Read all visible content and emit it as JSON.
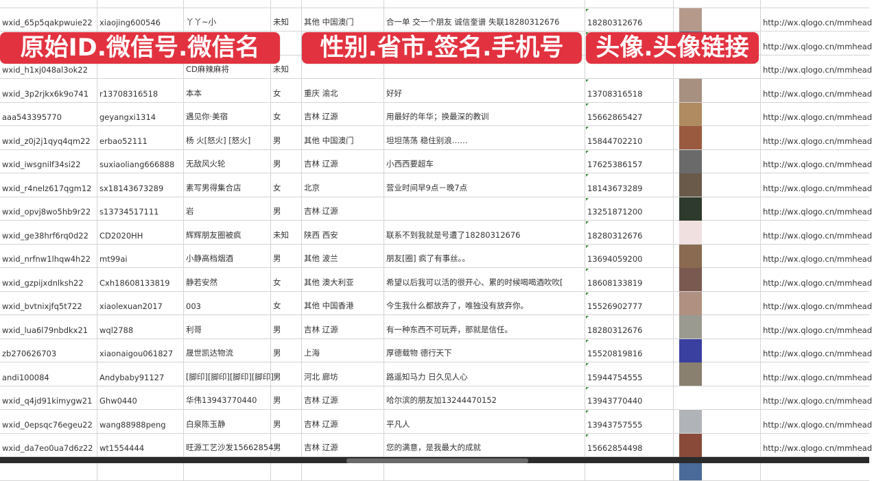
{
  "overlays": [
    "原始ID.微信号.微信名",
    "性别.省市.签名.手机号",
    "头像.头像链接"
  ],
  "rows": [
    {
      "id": "",
      "wxno": "",
      "name": "",
      "gender": "",
      "region": "",
      "sign": "",
      "phone": "",
      "avatar": "",
      "url": ""
    },
    {
      "id": "wxid_65p5qakpwuie22",
      "wxno": "xiaojing600546",
      "name": "丫丫~小",
      "gender": "未知",
      "region": "其他 中国澳门",
      "sign": "合一单 交一个朋友 诚信奎谱 失联18280312676",
      "phone": "18280312676",
      "avatar": "#b59a8c",
      "url": "http://wx.qlogo.cn/mmhead"
    },
    {
      "id": "",
      "wxno": "",
      "name": "",
      "gender": "",
      "region": "",
      "sign": "",
      "phone": "",
      "avatar": "#5a6a9a",
      "url": "http://wx.qlogo.cn/mmhead"
    },
    {
      "id": "wxid_h1xj048al3ok22",
      "wxno": "",
      "name": "CD麻辣麻将",
      "gender": "未知",
      "region": "",
      "sign": "",
      "phone": "",
      "avatar": "",
      "url": "http://wx.qlogo.cn/mmhead"
    },
    {
      "id": "wxid_3p2rjkx6k9o741",
      "wxno": "r13708316518",
      "name": "本本",
      "gender": "女",
      "region": "重庆 渝北",
      "sign": "好好",
      "phone": "13708316518",
      "avatar": "#a89080",
      "url": "http://wx.qlogo.cn/mmhead"
    },
    {
      "id": "aaa543395770",
      "wxno": "geyangxi1314",
      "name": "遇见你·美宿",
      "gender": "女",
      "region": "吉林 辽源",
      "sign": "用最好的年华；换最深的教训",
      "phone": "15662865427",
      "avatar": "#b08a60",
      "url": "http://wx.qlogo.cn/mmhead"
    },
    {
      "id": "wxid_z0j2j1qyq4qm22",
      "wxno": "erbao52111",
      "name": "杨 火[怒火] [怒火]",
      "gender": "男",
      "region": "其他 中国澳门",
      "sign": "坦坦荡荡 稳住别浪……",
      "phone": "15844702210",
      "avatar": "#9a5a40",
      "url": "http://wx.qlogo.cn/mmhead"
    },
    {
      "id": "wxid_iwsgnilf34si22",
      "wxno": "suxiaoliang666888",
      "name": "无敌风火轮",
      "gender": "男",
      "region": "吉林 辽源",
      "sign": "小西西要超车",
      "phone": "17625386157",
      "avatar": "#6a6a6a",
      "url": "http://wx.qlogo.cn/mmhead"
    },
    {
      "id": "wxid_r4nelz617qgm12",
      "wxno": "sx18143673289",
      "name": "素写男得集合店",
      "gender": "女",
      "region": "北京",
      "sign": "营业时间早9点－晚7点",
      "phone": "18143673289",
      "avatar": "#6a5a4a",
      "url": "http://wx.qlogo.cn/mmhead"
    },
    {
      "id": "wxid_opvj8wo5hb9r22",
      "wxno": "s13734517111",
      "name": "岩",
      "gender": "男",
      "region": "吉林 辽源",
      "sign": "",
      "phone": "13251871200",
      "avatar": "#2e3a2e",
      "url": "http://wx.qlogo.cn/mmhead"
    },
    {
      "id": "wxid_ge38hrf6rq0d22",
      "wxno": "CD2020HH",
      "name": "辉辉朋友圈被疯",
      "gender": "未知",
      "region": "陕西 西安",
      "sign": "联系不到我就是号遭了18280312676",
      "phone": "18280312676",
      "avatar": "#f0e0e0",
      "url": "http://wx.qlogo.cn/mmhead"
    },
    {
      "id": "wxid_nrfnw1lhqw4h22",
      "wxno": "mt99ai",
      "name": "小静高档烟酒",
      "gender": "男",
      "region": "其他 波兰",
      "sign": "朋友[圈] 疯了有事丝。。",
      "phone": "13694059200",
      "avatar": "#8a6a50",
      "url": "http://wx.qlogo.cn/mmhead"
    },
    {
      "id": "wxid_gzpijxdnlksh22",
      "wxno": "Cxh18608133819",
      "name": "静若安然",
      "gender": "女",
      "region": "其他 澳大利亚",
      "sign": "希望以后我可以活的很开心、累的时候喝喝酒吹吹[",
      "phone": "18608133819",
      "avatar": "#7a5a50",
      "url": "http://wx.qlogo.cn/mmhead"
    },
    {
      "id": "wxid_bvtnixjfq5t722",
      "wxno": "xiaolexuan2017",
      "name": "003",
      "gender": "女",
      "region": "其他 中国香港",
      "sign": "今生我什么都放弃了，唯独没有放弃你。",
      "phone": "15526902777",
      "avatar": "#b09080",
      "url": "http://wx.qlogo.cn/mmhead"
    },
    {
      "id": "wxid_lua6l79nbdkx21",
      "wxno": "wql2788",
      "name": "利哥",
      "gender": "男",
      "region": "吉林 辽源",
      "sign": "有一种东西不可玩弄，那就是信任。",
      "phone": "18280312676",
      "avatar": "#9a9a90",
      "url": "http://wx.qlogo.cn/mmhead"
    },
    {
      "id": "zb270626703",
      "wxno": "xiaonaigou061827",
      "name": "晟世凯达物流",
      "gender": "男",
      "region": "上海",
      "sign": "厚德载物 德行天下",
      "phone": "15520819816",
      "avatar": "#3a40a0",
      "url": "http://wx.qlogo.cn/mmhead"
    },
    {
      "id": "andi100084",
      "wxno": "Andybaby91127",
      "name": "[脚印][脚印][脚印][脚印]",
      "gender": "男",
      "region": "河北 廊坊",
      "sign": "路遥知马力 日久见人心",
      "phone": "15944754555",
      "avatar": "#8a8070",
      "url": "http://wx.qlogo.cn/mmhead"
    },
    {
      "id": "wxid_q4jd91kimygw21",
      "wxno": "Ghw0440",
      "name": "华伟13943770440",
      "gender": "男",
      "region": "吉林 辽源",
      "sign": "哈尔滨的朋友加13244470152",
      "phone": "13943770440",
      "avatar": "#ffffff",
      "url": "http://wx.qlogo.cn/mmhead"
    },
    {
      "id": "wxid_0epsqc76egeu22",
      "wxno": "wang88988peng",
      "name": "白泉陈玉静",
      "gender": "男",
      "region": "吉林 辽源",
      "sign": "平凡人",
      "phone": "13943757555",
      "avatar": "#b0b4b8",
      "url": "http://wx.qlogo.cn/mmhead"
    },
    {
      "id": "wxid_da7eo0ua7d6z22",
      "wxno": "wt1554444",
      "name": "旺源工艺沙发15662854",
      "gender": "男",
      "region": "吉林 辽源",
      "sign": "您的满意，是我最大的成就",
      "phone": "15662854498",
      "avatar": "#8a4a3a",
      "url": "http://wx.qlogo.cn/mmhead"
    },
    {
      "id": "",
      "wxno": "",
      "name": "",
      "gender": "",
      "region": "",
      "sign": "",
      "phone": "",
      "avatar": "#4a6a9a",
      "url": ""
    }
  ]
}
